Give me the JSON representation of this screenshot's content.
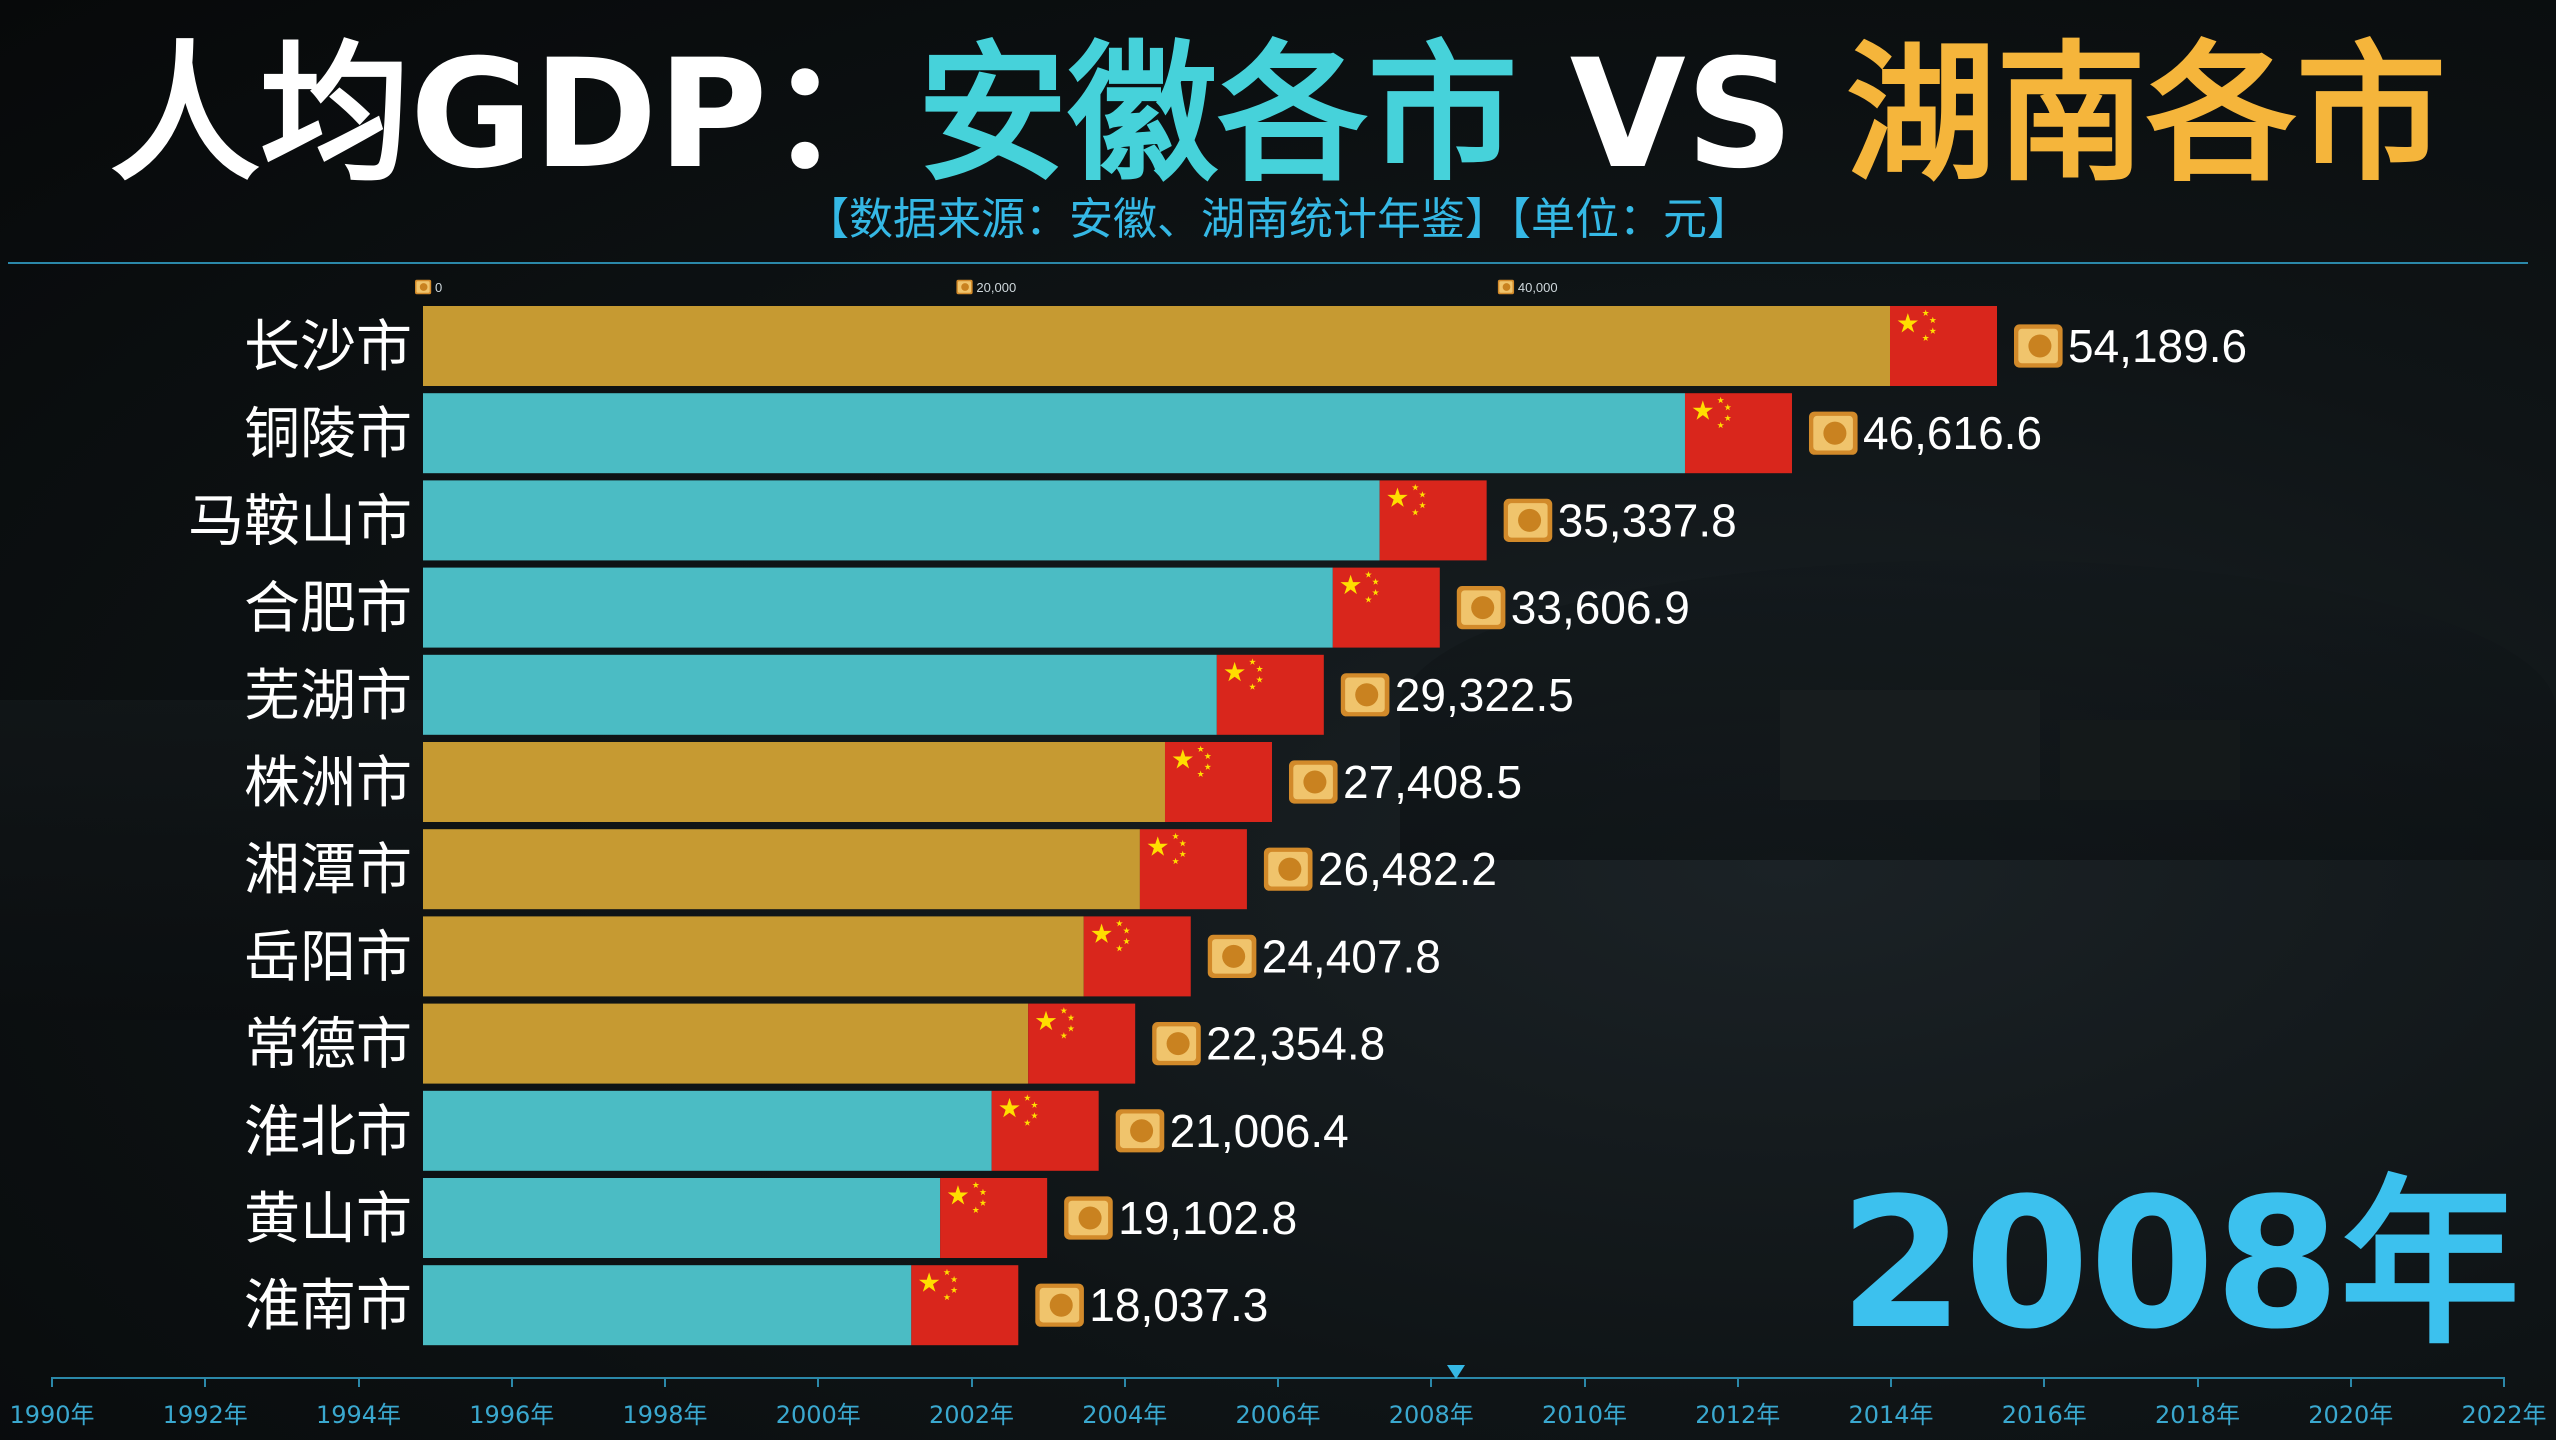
{
  "header": {
    "title_prefix": "人均GDP：",
    "title_anhui": "安徽各市",
    "title_vs": " VS ",
    "title_hunan": "湖南各市",
    "subtitle": "【数据来源：安徽、湖南统计年鉴】【单位：元】"
  },
  "colors": {
    "anhui": "#4bbcc4",
    "hunan": "#c69a32",
    "flag": "#d9261c",
    "flag_star": "#ffde00",
    "axis": "#2b88a9"
  },
  "icons": {
    "value_icon": "money-icon",
    "bar_end_icon": "china-flag-icon"
  },
  "chart_data": {
    "type": "bar",
    "orientation": "horizontal",
    "axis_ticks": [
      "0",
      "20,000",
      "40,000"
    ],
    "axis_tick_values": [
      0,
      20000,
      40000
    ],
    "xlim": [
      0,
      54189.6
    ],
    "categories": [
      "长沙市",
      "铜陵市",
      "马鞍山市",
      "合肥市",
      "芜湖市",
      "株洲市",
      "湘潭市",
      "岳阳市",
      "常德市",
      "淮北市",
      "黄山市",
      "淮南市"
    ],
    "values": [
      54189.6,
      46616.6,
      35337.8,
      33606.9,
      29322.5,
      27408.5,
      26482.2,
      24407.8,
      22354.8,
      21006.4,
      19102.8,
      18037.3
    ],
    "value_labels": [
      "54,189.6",
      "46,616.6",
      "35,337.8",
      "33,606.9",
      "29,322.5",
      "27,408.5",
      "26,482.2",
      "24,407.8",
      "22,354.8",
      "21,006.4",
      "19,102.8",
      "18,037.3"
    ],
    "province": [
      "hunan",
      "anhui",
      "anhui",
      "anhui",
      "anhui",
      "hunan",
      "hunan",
      "hunan",
      "hunan",
      "anhui",
      "anhui",
      "anhui"
    ]
  },
  "year_label": "2008年",
  "timeline": {
    "labels": [
      "1990年",
      "1992年",
      "1994年",
      "1996年",
      "1998年",
      "2000年",
      "2002年",
      "2004年",
      "2006年",
      "2008年",
      "2010年",
      "2012年",
      "2014年",
      "2016年",
      "2018年",
      "2020年",
      "2022年"
    ],
    "current_position": 0.5724
  }
}
